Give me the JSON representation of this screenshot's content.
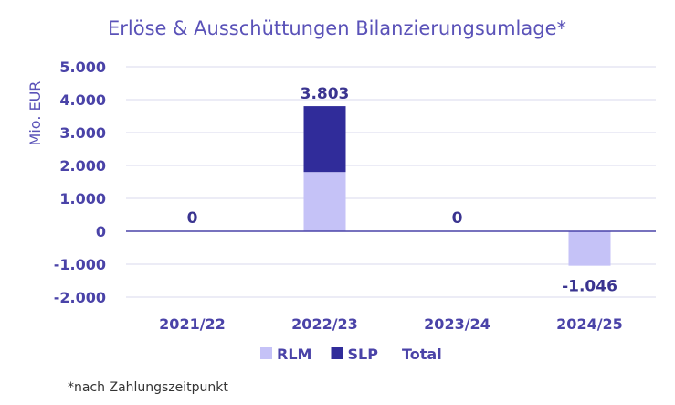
{
  "chart_data": {
    "type": "bar",
    "stacked": true,
    "title": "Erlöse & Ausschüttungen Bilanzierungsumlage*",
    "ylabel": "Mio. EUR",
    "xlabel": "",
    "ylim": [
      -2000,
      5000
    ],
    "yticks": [
      5000,
      4000,
      3000,
      2000,
      1000,
      0,
      -1000,
      -2000
    ],
    "ytick_labels": [
      "5.000",
      "4.000",
      "3.000",
      "2.000",
      "1.000",
      "0",
      "-1.000",
      "-2.000"
    ],
    "grid": true,
    "legend_position": "bottom",
    "categories": [
      "2021/22",
      "2022/23",
      "2023/24",
      "2024/25"
    ],
    "series": [
      {
        "name": "RLM",
        "color": "#c5c2f7",
        "values": [
          0,
          1800,
          0,
          -1046
        ]
      },
      {
        "name": "SLP",
        "color": "#302c9a",
        "values": [
          0,
          2003,
          0,
          0
        ]
      },
      {
        "name": "Total",
        "color": null,
        "values": [
          0,
          3803,
          0,
          -1046
        ]
      }
    ],
    "data_labels": [
      "0",
      "3.803",
      "0",
      "-1.046"
    ]
  },
  "footnote": "*nach Zahlungszeitpunkt"
}
